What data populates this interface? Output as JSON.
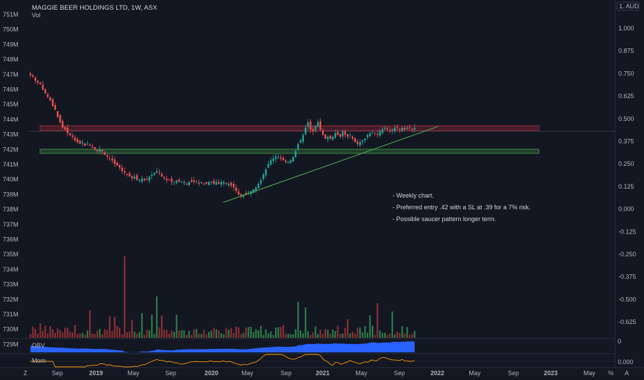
{
  "header": {
    "title": "MAGGIE BEER HOLDINGS LTD, 1W, ASX",
    "volume_label": "Vol",
    "currency_badge": "1. AUD",
    "scale_mode_labels": [
      "Z",
      "%",
      "A"
    ]
  },
  "colors": {
    "background": "#131722",
    "up": "#26a69a",
    "down": "#ef5350",
    "volume_up": "#2f7d48",
    "volume_down": "#8f2f33",
    "trendline": "#4caf50",
    "resistance_zone": "#f23645",
    "support_zone": "#4caf50",
    "obv_fill": "#2962ff",
    "momentum_line": "#ff9800",
    "text": "#b2b5be"
  },
  "axes": {
    "price_ticks": [
      "1.000",
      "0.875",
      "0.750",
      "0.625",
      "0.500",
      "0.375",
      "0.250",
      "0.125",
      "0.000",
      "-0.125",
      "-0.250",
      "-0.375",
      "-0.500",
      "-0.625"
    ],
    "volume_ticks": [
      "751M",
      "750M",
      "749M",
      "748M",
      "747M",
      "746M",
      "745M",
      "744M",
      "743M",
      "742M",
      "741M",
      "740M",
      "739M",
      "738M",
      "737M",
      "736M",
      "735M",
      "734M",
      "733M",
      "732M",
      "731M",
      "730M",
      "729M"
    ],
    "time_ticks": [
      "Sep",
      "2019",
      "May",
      "Sep",
      "2020",
      "May",
      "Sep",
      "2021",
      "May",
      "Sep",
      "2022",
      "May",
      "Sep",
      "2023",
      "May"
    ],
    "obv_tick": "0",
    "mom_tick": "0.000"
  },
  "panes": {
    "obv_label": "OBV",
    "mom_label": "Mom"
  },
  "annotations": [
    "- Weekly chart.",
    "- Preferred entry .42 with a SL at .39 for a 7% risk.",
    "- Possible saucer pattern longer term."
  ],
  "chart_data": {
    "type": "candlestick",
    "title": "MAGGIE BEER HOLDINGS LTD, 1W, ASX",
    "interval": "1W",
    "currency": "AUD",
    "grid": false,
    "start": "2018-06",
    "end": "2021-10",
    "price_ylim": [
      -0.6875,
      1.0625
    ],
    "series": [
      {
        "name": "Price",
        "approx_weekly_close": [
          0.74,
          0.73,
          0.71,
          0.7,
          0.69,
          0.66,
          0.64,
          0.62,
          0.6,
          0.57,
          0.55,
          0.51,
          0.48,
          0.45,
          0.44,
          0.42,
          0.41,
          0.4,
          0.38,
          0.37,
          0.36,
          0.37,
          0.35,
          0.36,
          0.35,
          0.34,
          0.33,
          0.32,
          0.33,
          0.32,
          0.3,
          0.29,
          0.28,
          0.27,
          0.25,
          0.24,
          0.23,
          0.21,
          0.2,
          0.19,
          0.18,
          0.17,
          0.18,
          0.16,
          0.16,
          0.17,
          0.16,
          0.16,
          0.18,
          0.19,
          0.2,
          0.21,
          0.2,
          0.18,
          0.17,
          0.16,
          0.16,
          0.15,
          0.15,
          0.16,
          0.15,
          0.15,
          0.15,
          0.14,
          0.15,
          0.15,
          0.15,
          0.15,
          0.14,
          0.15,
          0.14,
          0.14,
          0.15,
          0.15,
          0.14,
          0.15,
          0.14,
          0.15,
          0.15,
          0.14,
          0.14,
          0.13,
          0.12,
          0.1,
          0.08,
          0.07,
          0.08,
          0.08,
          0.09,
          0.1,
          0.11,
          0.12,
          0.14,
          0.16,
          0.19,
          0.22,
          0.25,
          0.27,
          0.28,
          0.29,
          0.29,
          0.28,
          0.27,
          0.26,
          0.26,
          0.27,
          0.29,
          0.32,
          0.36,
          0.38,
          0.41,
          0.45,
          0.48,
          0.44,
          0.43,
          0.46,
          0.48,
          0.44,
          0.41,
          0.39,
          0.4,
          0.39,
          0.4,
          0.42,
          0.41,
          0.4,
          0.43,
          0.41,
          0.4,
          0.41,
          0.39,
          0.37,
          0.36,
          0.37,
          0.38,
          0.39,
          0.41,
          0.42,
          0.43,
          0.42,
          0.41,
          0.43,
          0.44,
          0.45,
          0.44,
          0.43,
          0.44,
          0.45,
          0.45,
          0.44,
          0.45,
          0.44,
          0.45,
          0.45,
          0.44,
          0.45
        ]
      }
    ],
    "levels": [
      {
        "name": "resistance",
        "from": 0.445,
        "to": 0.465
      },
      {
        "name": "support",
        "from": 0.325,
        "to": 0.345
      }
    ],
    "trendline": {
      "from": [
        "2020-03",
        0.075
      ],
      "to": [
        "2021-11",
        0.47
      ]
    }
  }
}
